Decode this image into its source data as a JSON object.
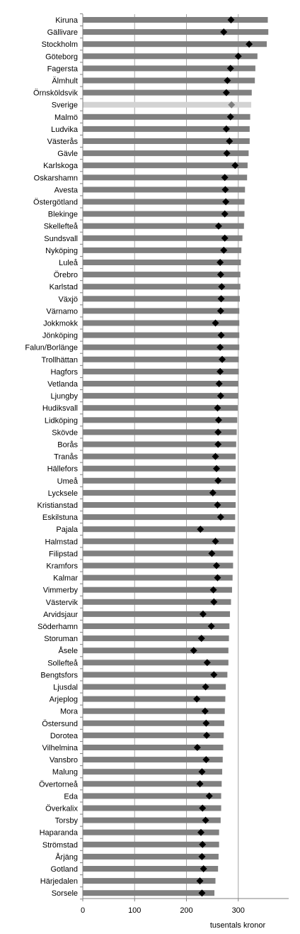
{
  "chart_data": {
    "type": "bar",
    "orientation": "horizontal",
    "categories": [
      "Kiruna",
      "Gällivare",
      "Stockholm",
      "Göteborg",
      "Fagersta",
      "Älmhult",
      "Örnsköldsvik",
      "Sverige",
      "Malmö",
      "Ludvika",
      "Västerås",
      "Gävle",
      "Karlskoga",
      "Oskarshamn",
      "Avesta",
      "Östergötland",
      "Blekinge",
      "Skellefteå",
      "Sundsvall",
      "Nyköping",
      "Luleå",
      "Örebro",
      "Karlstad",
      "Växjö",
      "Värnamo",
      "Jokkmokk",
      "Jönköping",
      "Falun/Borlänge",
      "Trollhättan",
      "Hagfors",
      "Vetlanda",
      "Ljungby",
      "Hudiksvall",
      "Lidköping",
      "Skövde",
      "Borås",
      "Tranås",
      "Hällefors",
      "Umeå",
      "Lycksele",
      "Kristianstad",
      "Eskilstuna",
      "Pajala",
      "Halmstad",
      "Filipstad",
      "Kramfors",
      "Kalmar",
      "Vimmerby",
      "Västervik",
      "Arvidsjaur",
      "Söderhamn",
      "Storuman",
      "Åsele",
      "Sollefteå",
      "Bengtsfors",
      "Ljusdal",
      "Arjeplog",
      "Mora",
      "Östersund",
      "Dorotea",
      "Vilhelmina",
      "Vansbro",
      "Malung",
      "Övertorneå",
      "Eda",
      "Överkalix",
      "Torsby",
      "Haparanda",
      "Strömstad",
      "Årjäng",
      "Gotland",
      "Härjedalen",
      "Sorsele"
    ],
    "series": [
      {
        "values": [
          357,
          358,
          355,
          337,
          333,
          332,
          326,
          325,
          323,
          322,
          322,
          320,
          318,
          317,
          313,
          312,
          312,
          311,
          308,
          306,
          305,
          304,
          304,
          303,
          302,
          302,
          302,
          302,
          301,
          301,
          300,
          300,
          299,
          298,
          297,
          296,
          295,
          295,
          295,
          295,
          295,
          294,
          294,
          291,
          290,
          290,
          289,
          288,
          286,
          284,
          283,
          282,
          281,
          281,
          279,
          276,
          275,
          274,
          273,
          272,
          271,
          270,
          269,
          268,
          267,
          267,
          266,
          263,
          263,
          262,
          261,
          256,
          254
        ],
        "color_ref": "bar_color"
      },
      {
        "values": [
          286,
          272,
          321,
          300,
          285,
          279,
          277,
          287,
          285,
          277,
          283,
          278,
          294,
          274,
          275,
          276,
          274,
          262,
          274,
          272,
          265,
          266,
          268,
          267,
          266,
          256,
          267,
          265,
          269,
          265,
          263,
          266,
          260,
          262,
          261,
          261,
          256,
          258,
          261,
          251,
          260,
          266,
          227,
          256,
          249,
          258,
          260,
          252,
          253,
          232,
          248,
          229,
          214,
          240,
          253,
          237,
          220,
          236,
          238,
          239,
          221,
          238,
          230,
          226,
          244,
          231,
          237,
          228,
          231,
          230,
          233,
          226,
          230
        ]
      }
    ],
    "highlight_category": "Sverige",
    "xlim": [
      0,
      400
    ],
    "xticks": [
      "0",
      "100",
      "200",
      "300"
    ],
    "xlabel": "tusentals kronor",
    "title": "",
    "grid": true,
    "colors": {
      "bar_color": "#808080",
      "highlight_bar_color": "#d3d3d3",
      "marker_color": "#000000",
      "highlight_marker_color": "#808080",
      "grid_color": "#a6a6a6"
    }
  }
}
